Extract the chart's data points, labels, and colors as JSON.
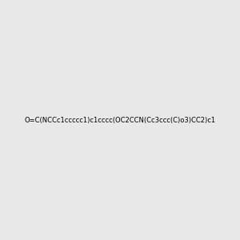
{
  "smiles": "O=C(NCCc1ccccc1)c1cccc(OC2CCN(Cc3ccc(C)o3)CC2)c1",
  "image_size": 300,
  "background_color": "#e8e8e8"
}
